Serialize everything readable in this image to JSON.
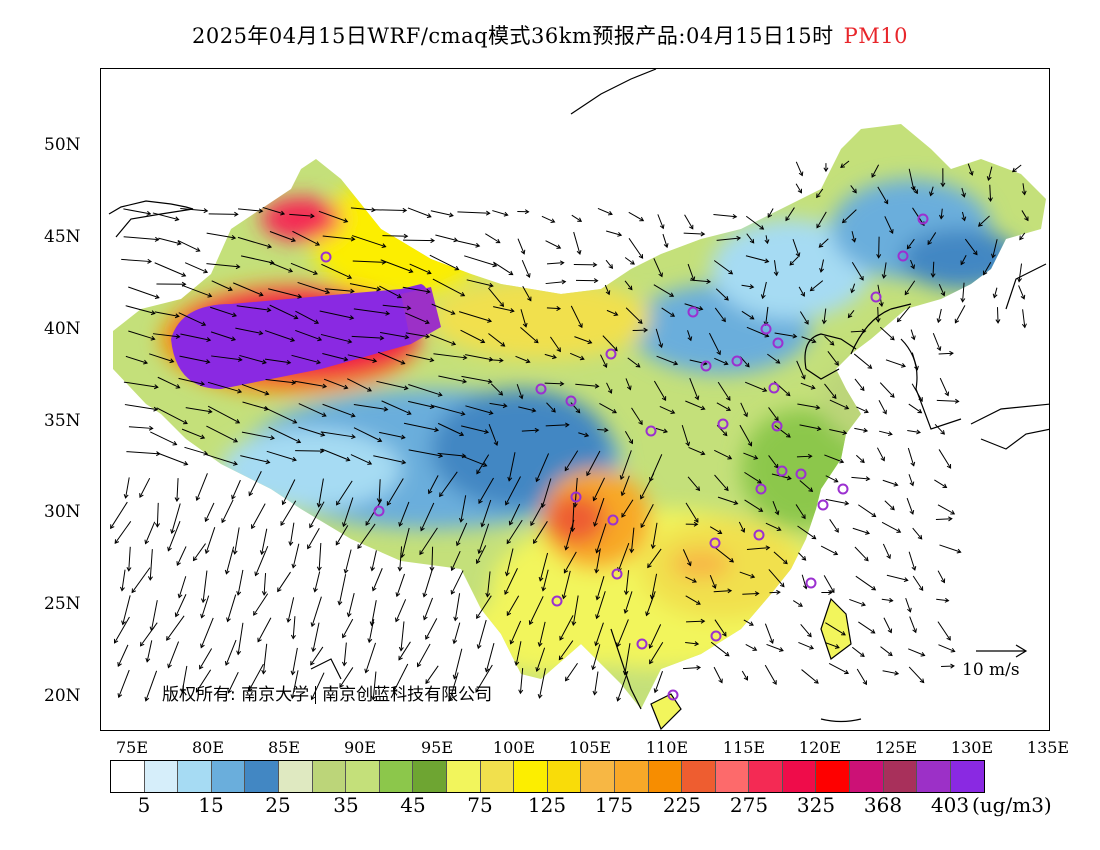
{
  "header": {
    "title": "2025年04月15日WRF/cmaq模式36km预报产品:04月15日15时",
    "variable": "PM10"
  },
  "map": {
    "lat_labels": [
      "50N",
      "45N",
      "40N",
      "35N",
      "30N",
      "25N",
      "20N"
    ],
    "lon_labels": [
      "75E",
      "80E",
      "85E",
      "90E",
      "95E",
      "100E",
      "105E",
      "110E",
      "115E",
      "120E",
      "125E",
      "130E",
      "135E"
    ],
    "copyright_prefix": "版权所有:",
    "copyright_org1": "南京大学",
    "copyright_org2": "南京创蓝科技有限公司",
    "wind_reference": "10 m/s"
  },
  "colorbar": {
    "colors": [
      "#ffffff",
      "#d6eefa",
      "#a6dbf3",
      "#6aaedc",
      "#4287c3",
      "#dfe9c1",
      "#bcd579",
      "#c4e07a",
      "#8cc74b",
      "#6ea532",
      "#f2f55c",
      "#f1e04d",
      "#fcee00",
      "#f9dc09",
      "#f7b744",
      "#f8a828",
      "#f78d00",
      "#ee5d30",
      "#fd6a6b",
      "#f42a54",
      "#ef0c4a",
      "#fe0000",
      "#cc1176",
      "#a8305b",
      "#9c30c7",
      "#8a29e2"
    ],
    "labels": [
      "5",
      "15",
      "25",
      "35",
      "45",
      "75",
      "125",
      "175",
      "225",
      "275",
      "325",
      "368",
      "403"
    ],
    "unit": "(ug/m3)"
  }
}
